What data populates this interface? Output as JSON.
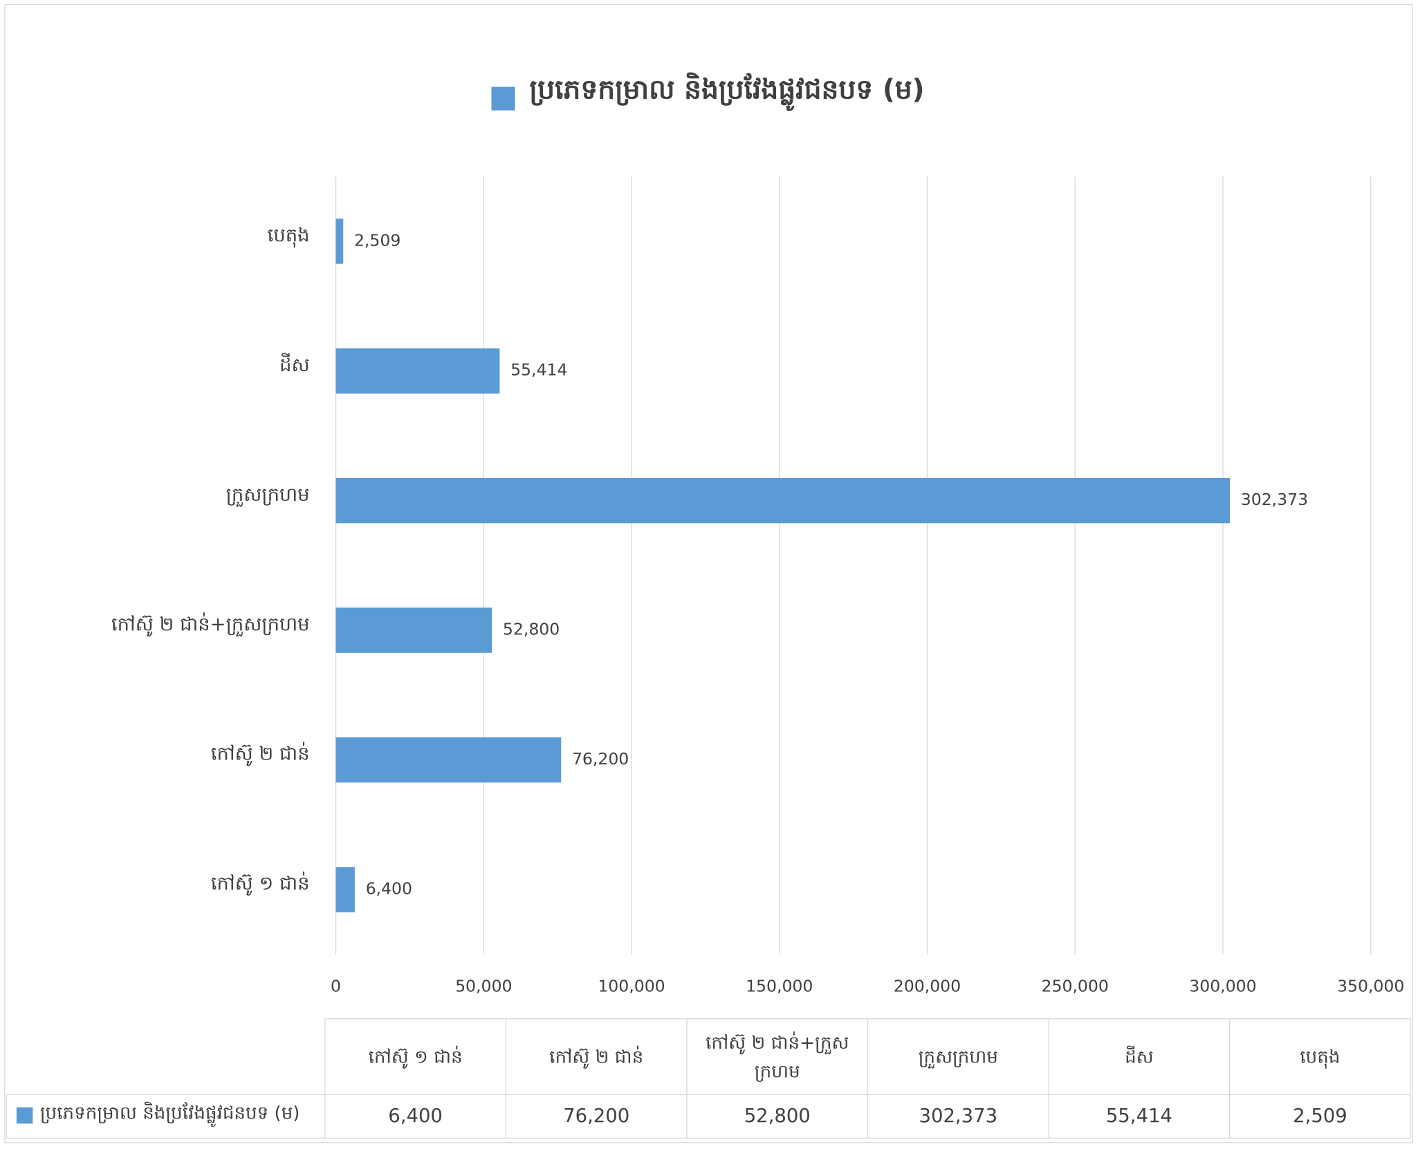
{
  "chart_data": {
    "type": "bar",
    "orientation": "horizontal",
    "categories": [
      "កៅស៊ូ ១ ជាន់",
      "កៅស៊ូ ២ ជាន់",
      "កៅស៊ូ ២ ជាន់+ក្រួសក្រហម",
      "ក្រួសក្រហម",
      "ដីស",
      "បេតុង"
    ],
    "series": [
      {
        "name": "ប្រភេទកម្រាល និងប្រវែងផ្លូវជនបទ (ម)",
        "color": "#5b9bd5",
        "values": [
          6400,
          76200,
          52800,
          302373,
          55414,
          2509
        ],
        "value_labels": [
          "6,400",
          "76,200",
          "52,800",
          "302,373",
          "55,414",
          "2,509"
        ]
      }
    ],
    "xlim": [
      0,
      350000
    ],
    "xticks": [
      0,
      {
        "value": 50000,
        "label": "50,000"
      },
      {
        "value": 100000,
        "label": "100,000"
      },
      {
        "value": 150000,
        "label": "150,000"
      },
      {
        "value": 200000,
        "label": "200,000"
      },
      {
        "value": 250000,
        "label": "250,000"
      },
      {
        "value": 300000,
        "label": "300,000"
      },
      {
        "value": 350000,
        "label": "350,000"
      }
    ],
    "grid": true,
    "legend": "top",
    "data_table": true
  }
}
